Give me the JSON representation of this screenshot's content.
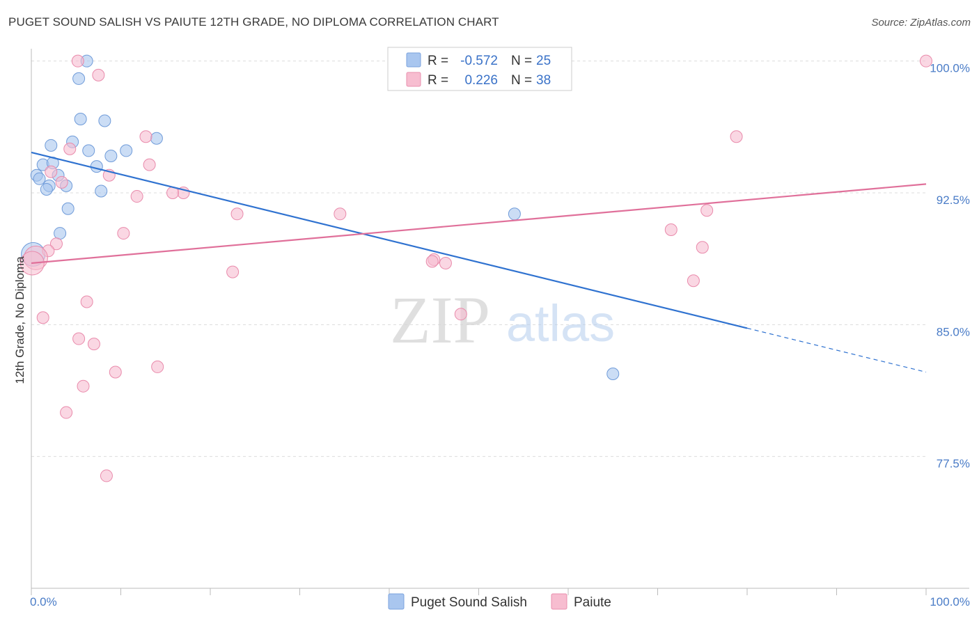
{
  "title": "PUGET SOUND SALISH VS PAIUTE 12TH GRADE, NO DIPLOMA CORRELATION CHART",
  "source": "Source: ZipAtlas.com",
  "watermark": {
    "zip": "ZIP",
    "atlas": "atlas"
  },
  "chart_data": {
    "type": "scatter",
    "title": "PUGET SOUND SALISH VS PAIUTE 12TH GRADE, NO DIPLOMA CORRELATION CHART",
    "ylabel": "12th Grade, No Diploma",
    "xlabel": "",
    "xlim": [
      0,
      100
    ],
    "ylim": [
      70.0,
      100.7
    ],
    "x_tick_labels": [
      "0.0%",
      "100.0%"
    ],
    "y_ticks": [
      100.0,
      92.5,
      85.0,
      77.5
    ],
    "y_tick_labels": [
      "100.0%",
      "92.5%",
      "85.0%",
      "77.5%"
    ],
    "grid": true,
    "legend": {
      "position": "top-center",
      "entries": [
        {
          "name": "Puget Sound Salish",
          "r_label": "R =",
          "r": "-0.572",
          "n_label": "N =",
          "n": "25",
          "color": "#a9c6ef",
          "stroke": "#7ba3de"
        },
        {
          "name": "Paiute",
          "r_label": "R =",
          "r": "0.226",
          "n_label": "N =",
          "n": "38",
          "color": "#f7bdd0",
          "stroke": "#ea8fae"
        }
      ]
    },
    "series": [
      {
        "name": "Puget Sound Salish",
        "color": "#a9c6ef",
        "stroke": "#6f9bd9",
        "line_color": "#2f72d0",
        "trend": {
          "x0": 0,
          "y0": 94.8,
          "x1": 80,
          "y1": 84.8,
          "dash_to_x": 100,
          "dash_to_y": 82.3
        },
        "points": [
          {
            "x": 6.2,
            "y": 100.0
          },
          {
            "x": 5.3,
            "y": 99.0
          },
          {
            "x": 5.5,
            "y": 96.7
          },
          {
            "x": 8.2,
            "y": 96.6
          },
          {
            "x": 4.6,
            "y": 95.4
          },
          {
            "x": 2.2,
            "y": 95.2
          },
          {
            "x": 14.0,
            "y": 95.6
          },
          {
            "x": 6.4,
            "y": 94.9
          },
          {
            "x": 10.6,
            "y": 94.9
          },
          {
            "x": 8.9,
            "y": 94.6
          },
          {
            "x": 1.3,
            "y": 94.1
          },
          {
            "x": 2.4,
            "y": 94.2
          },
          {
            "x": 7.3,
            "y": 94.0
          },
          {
            "x": 0.6,
            "y": 93.5
          },
          {
            "x": 3.0,
            "y": 93.5
          },
          {
            "x": 0.9,
            "y": 93.3
          },
          {
            "x": 2.0,
            "y": 92.9
          },
          {
            "x": 3.9,
            "y": 92.9
          },
          {
            "x": 1.7,
            "y": 92.7
          },
          {
            "x": 7.8,
            "y": 92.6
          },
          {
            "x": 4.1,
            "y": 91.6
          },
          {
            "x": 3.2,
            "y": 90.2
          },
          {
            "x": 0.2,
            "y": 89.0
          },
          {
            "x": 54.0,
            "y": 91.3
          },
          {
            "x": 65.0,
            "y": 82.2
          }
        ]
      },
      {
        "name": "Paiute",
        "color": "#f7bdd0",
        "stroke": "#e98aab",
        "line_color": "#e0709a",
        "trend": {
          "x0": 0,
          "y0": 88.5,
          "x1": 100,
          "y1": 93.0
        },
        "points": [
          {
            "x": 5.2,
            "y": 100.0
          },
          {
            "x": 7.5,
            "y": 99.2
          },
          {
            "x": 100.0,
            "y": 100.0
          },
          {
            "x": 12.8,
            "y": 95.7
          },
          {
            "x": 4.3,
            "y": 95.0
          },
          {
            "x": 78.8,
            "y": 95.7
          },
          {
            "x": 13.2,
            "y": 94.1
          },
          {
            "x": 2.2,
            "y": 93.7
          },
          {
            "x": 8.7,
            "y": 93.5
          },
          {
            "x": 3.4,
            "y": 93.1
          },
          {
            "x": 17.0,
            "y": 92.5
          },
          {
            "x": 15.8,
            "y": 92.5
          },
          {
            "x": 11.8,
            "y": 92.3
          },
          {
            "x": 75.5,
            "y": 91.5
          },
          {
            "x": 23.0,
            "y": 91.3
          },
          {
            "x": 34.5,
            "y": 91.3
          },
          {
            "x": 71.5,
            "y": 90.4
          },
          {
            "x": 10.3,
            "y": 90.2
          },
          {
            "x": 2.8,
            "y": 89.6
          },
          {
            "x": 75.0,
            "y": 89.4
          },
          {
            "x": 1.9,
            "y": 89.2
          },
          {
            "x": 0.5,
            "y": 88.8
          },
          {
            "x": 0.1,
            "y": 88.5
          },
          {
            "x": 45.0,
            "y": 88.7
          },
          {
            "x": 46.3,
            "y": 88.5
          },
          {
            "x": 44.8,
            "y": 88.6
          },
          {
            "x": 22.5,
            "y": 88.0
          },
          {
            "x": 74.0,
            "y": 87.5
          },
          {
            "x": 6.2,
            "y": 86.3
          },
          {
            "x": 48.0,
            "y": 85.6
          },
          {
            "x": 1.3,
            "y": 85.4
          },
          {
            "x": 5.3,
            "y": 84.2
          },
          {
            "x": 7.0,
            "y": 83.9
          },
          {
            "x": 14.1,
            "y": 82.6
          },
          {
            "x": 9.4,
            "y": 82.3
          },
          {
            "x": 5.8,
            "y": 81.5
          },
          {
            "x": 3.9,
            "y": 80.0
          },
          {
            "x": 8.4,
            "y": 76.4
          }
        ]
      }
    ]
  }
}
